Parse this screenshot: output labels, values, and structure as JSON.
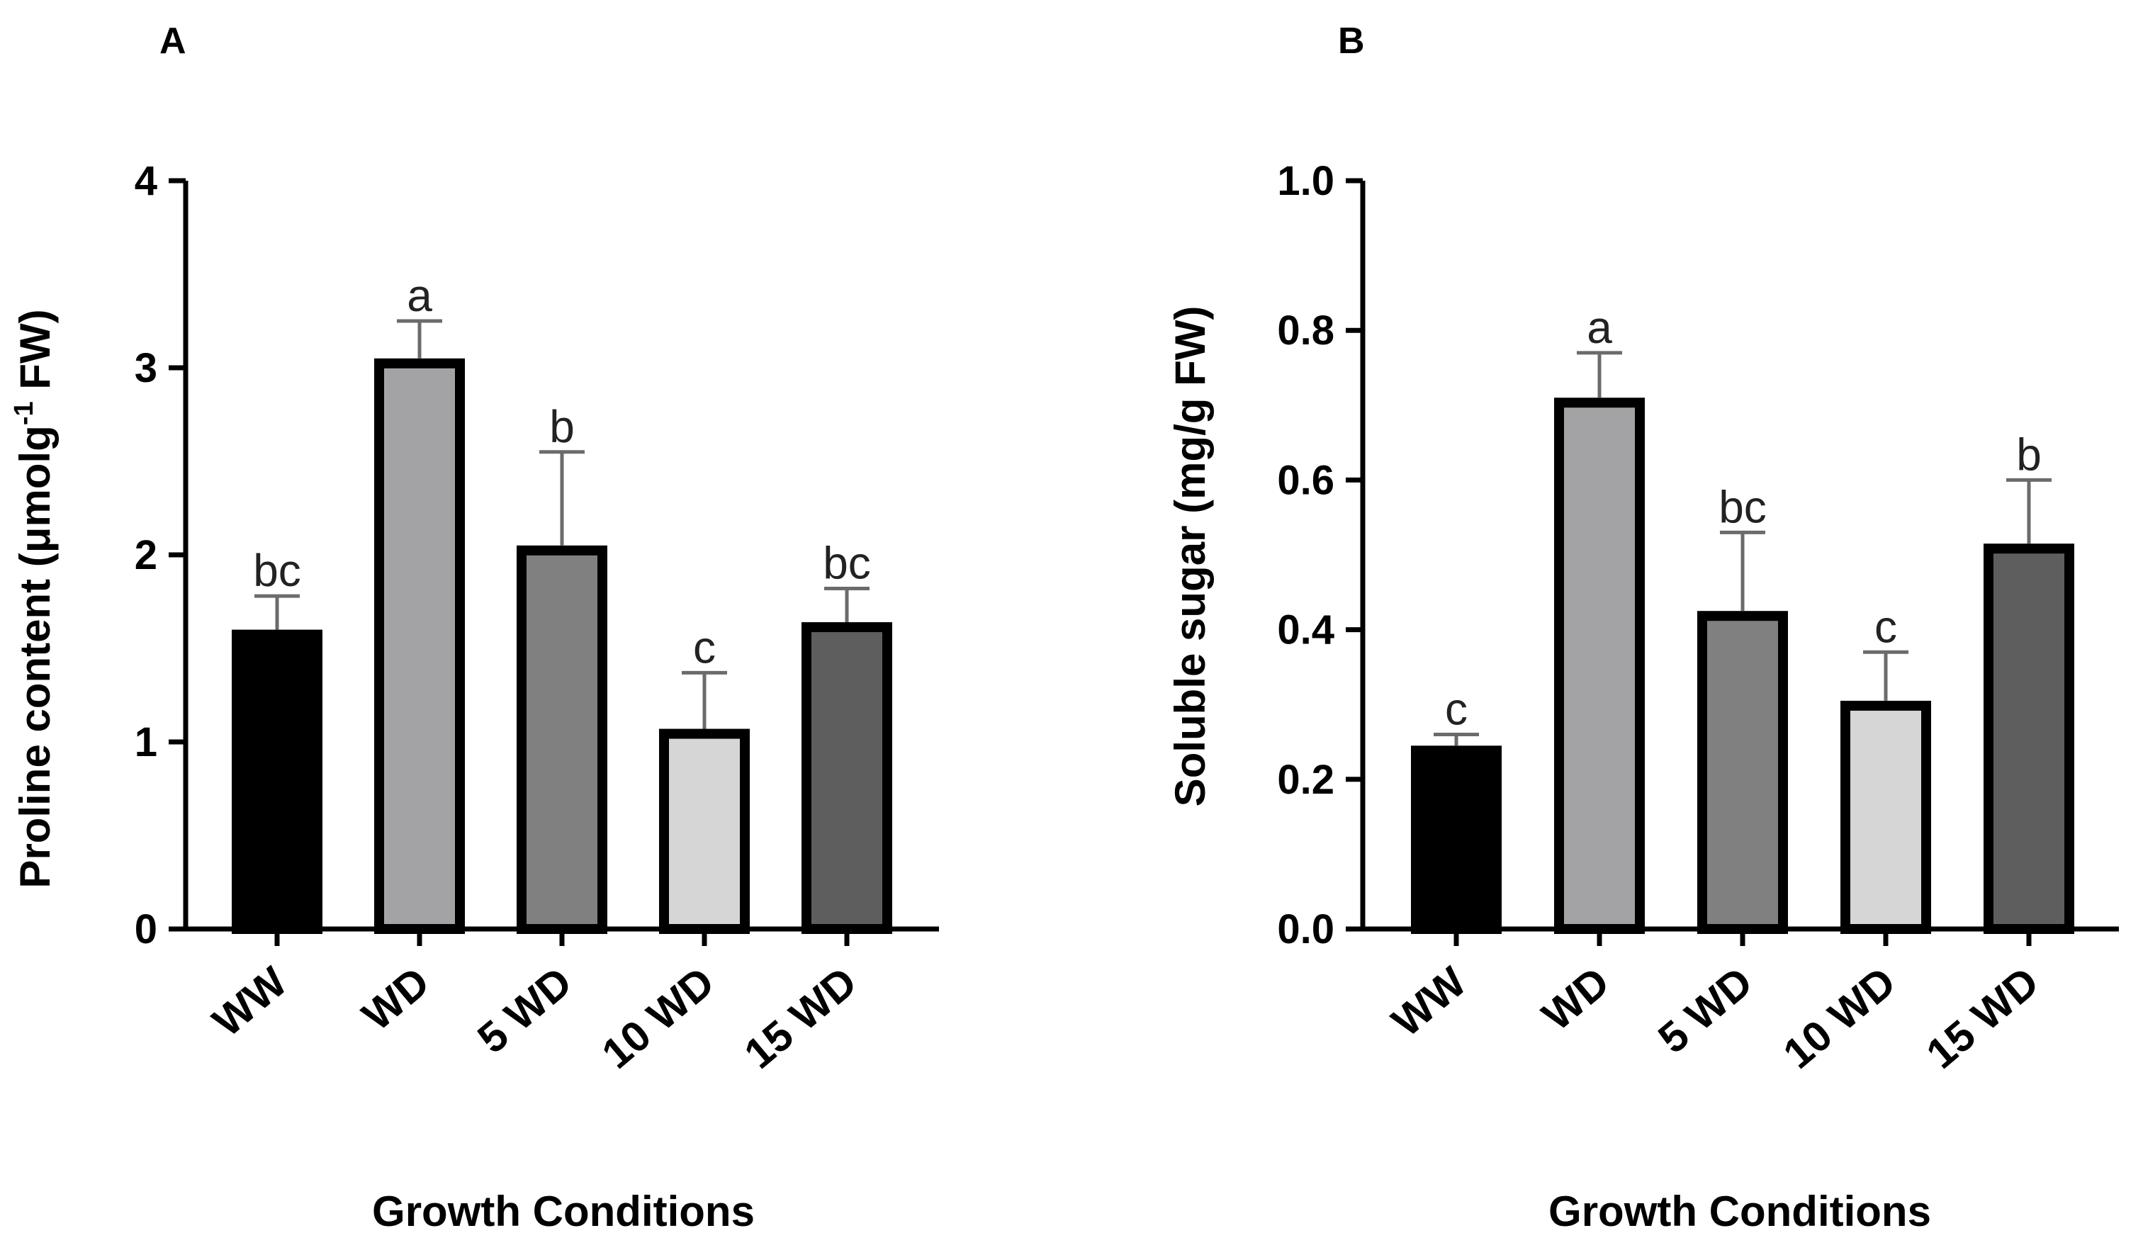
{
  "chart_data": [
    {
      "panel": "A",
      "type": "bar",
      "title": "",
      "xlabel": "Growth Conditions",
      "ylabel_main": "Proline content (μmolg",
      "ylabel_sup": "-1",
      "ylabel_tail": " FW)",
      "categories": [
        "WW",
        "WD",
        "5 WD",
        "10 WD",
        "15 WD"
      ],
      "values": [
        1.6,
        3.05,
        2.05,
        1.07,
        1.64
      ],
      "errors": [
        0.18,
        0.2,
        0.5,
        0.3,
        0.18
      ],
      "letters": [
        "bc",
        "a",
        "b",
        "c",
        "bc"
      ],
      "colors": [
        "#000000",
        "#a3a3a6",
        "#808080",
        "#d6d6d6",
        "#5e5e5e"
      ],
      "ylim": [
        0,
        4
      ],
      "yticks": [
        0,
        1,
        2,
        3,
        4
      ],
      "ytick_labels": [
        "0",
        "1",
        "2",
        "3",
        "4"
      ],
      "grid": false
    },
    {
      "panel": "B",
      "type": "bar",
      "title": "",
      "xlabel": "Growth Conditions",
      "ylabel_main": "Soluble sugar (mg/g FW)",
      "ylabel_sup": "",
      "ylabel_tail": "",
      "categories": [
        "WW",
        "WD",
        "5 WD",
        "10 WD",
        "15 WD"
      ],
      "values": [
        0.245,
        0.71,
        0.425,
        0.305,
        0.515
      ],
      "errors": [
        0.015,
        0.06,
        0.105,
        0.065,
        0.085
      ],
      "letters": [
        "c",
        "a",
        "bc",
        "c",
        "b"
      ],
      "colors": [
        "#000000",
        "#a3a3a6",
        "#808080",
        "#d6d6d6",
        "#5e5e5e"
      ],
      "ylim": [
        0,
        1.0
      ],
      "yticks": [
        0,
        0.2,
        0.4,
        0.6,
        0.8,
        1.0
      ],
      "ytick_labels": [
        "0.0",
        "0.2",
        "0.4",
        "0.6",
        "0.8",
        "1.0"
      ],
      "grid": false
    }
  ]
}
